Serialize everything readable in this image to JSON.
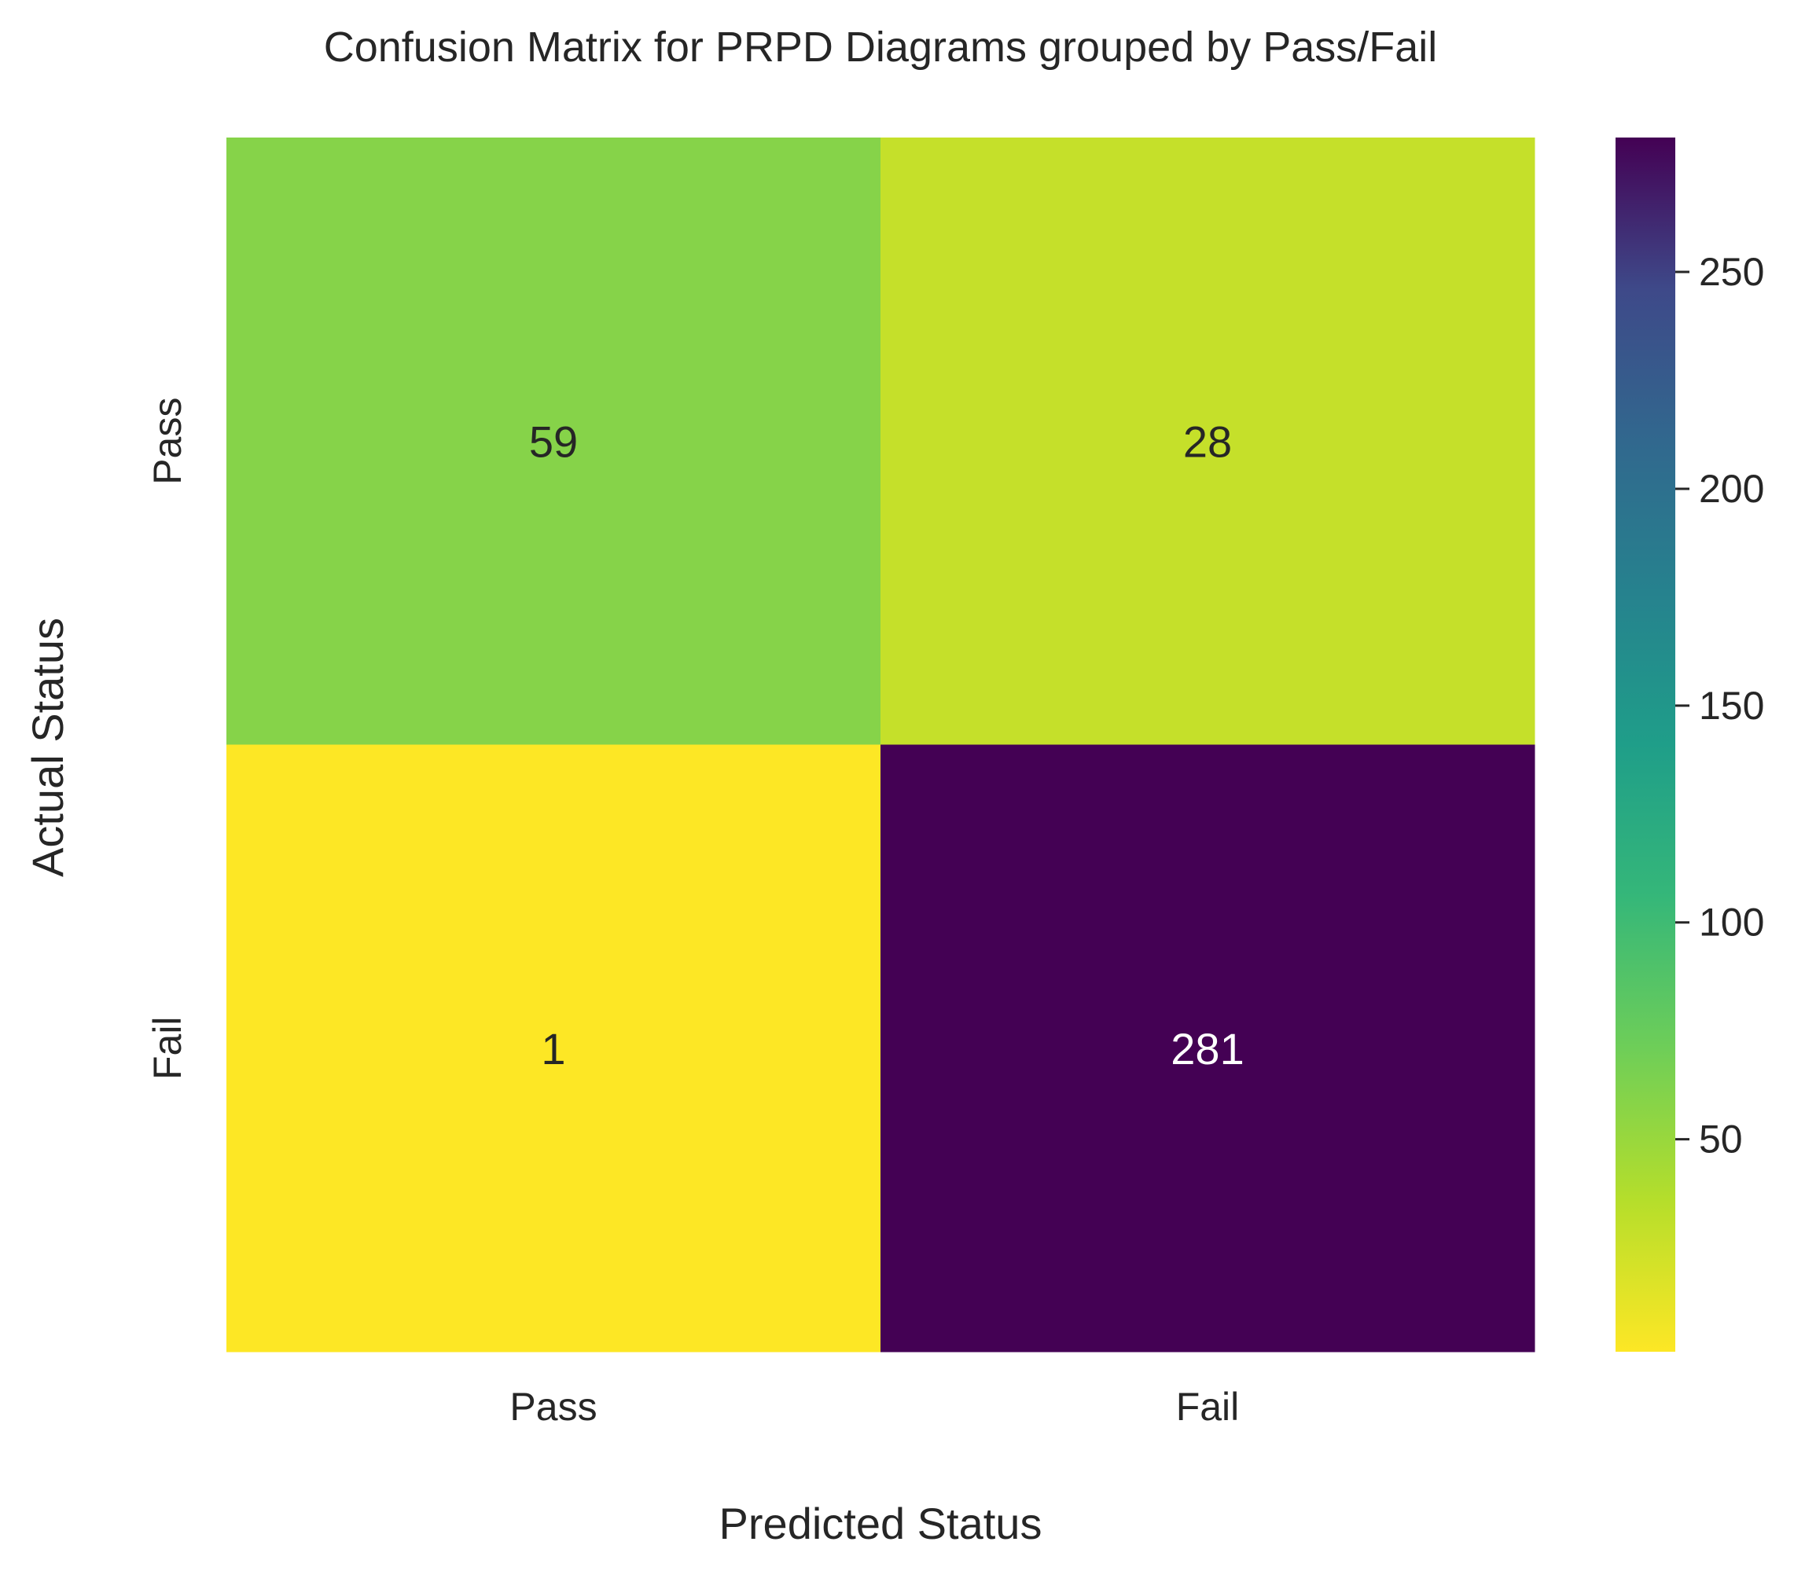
{
  "chart_data": {
    "type": "heatmap",
    "title": "Confusion Matrix for PRPD Diagrams grouped by Pass/Fail",
    "xlabel": "Predicted Status",
    "ylabel": "Actual Status",
    "x_categories": [
      "Pass",
      "Fail"
    ],
    "y_categories": [
      "Pass",
      "Fail"
    ],
    "values": [
      [
        59,
        28
      ],
      [
        1,
        281
      ]
    ],
    "colormap": "viridis_r",
    "colorbar": {
      "range": [
        1,
        281
      ],
      "ticks": [
        50,
        100,
        150,
        200,
        250
      ]
    },
    "grid": false
  }
}
